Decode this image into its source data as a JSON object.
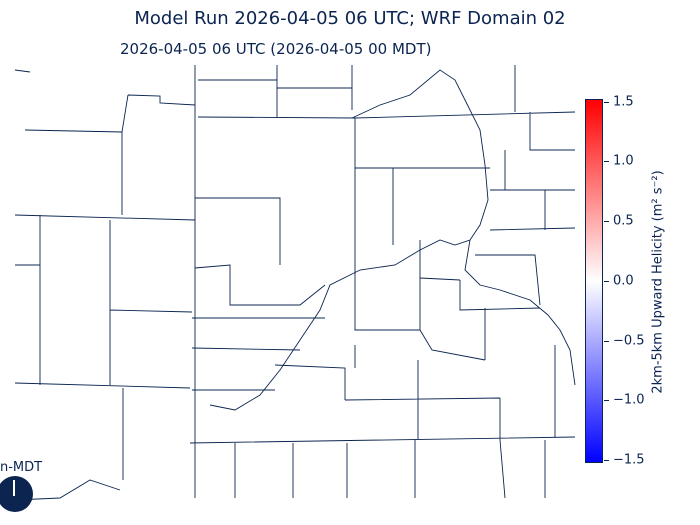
{
  "title": "Model Run 2026-04-05 06 UTC; WRF Domain 02",
  "subtitle": "2026-04-05 06 UTC  (2026-04-05 00 MDT)",
  "colorbar": {
    "label": "2km-5km Upward Helicity (m² s⁻²)",
    "ticks": [
      "1.5",
      "1.0",
      "0.5",
      "0.0",
      "−0.5",
      "−1.0",
      "−1.5"
    ],
    "range": [
      -1.5,
      1.5
    ],
    "colormap": "bwr",
    "colors": {
      "max": "#ff0000",
      "mid": "#ffffff",
      "min": "#0000ff"
    }
  },
  "logo": {
    "text": "n-MDT"
  },
  "line_color": "#0b2450"
}
